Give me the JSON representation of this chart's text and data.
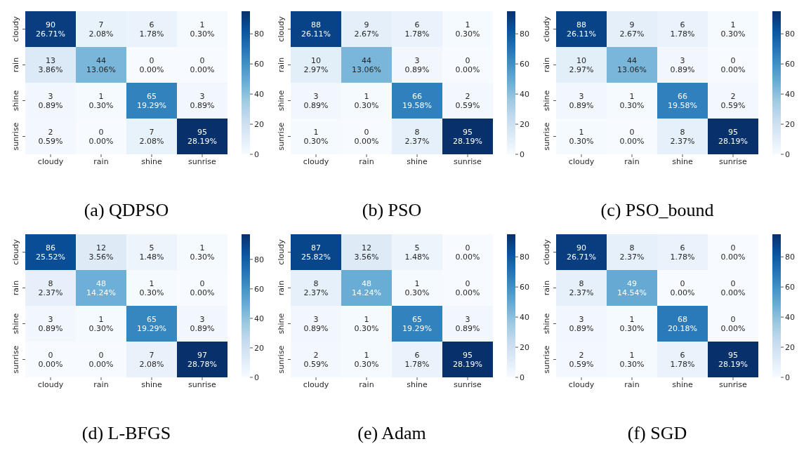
{
  "chart_data": [
    {
      "type": "heatmap",
      "title": "(a) QDPSO",
      "categories": [
        "cloudy",
        "rain",
        "shine",
        "sunrise"
      ],
      "y_categories": [
        "cloudy",
        "rain",
        "shine",
        "sunrise"
      ],
      "cells": [
        [
          90,
          7,
          6,
          1
        ],
        [
          13,
          44,
          0,
          0
        ],
        [
          3,
          1,
          65,
          3
        ],
        [
          2,
          0,
          7,
          95
        ]
      ],
      "cell_labels": [
        [
          "90\n26.71%",
          "7\n2.08%",
          "6\n1.78%",
          "1\n0.30%"
        ],
        [
          "13\n3.86%",
          "44\n13.06%",
          "0\n0.00%",
          "0\n0.00%"
        ],
        [
          "3\n0.89%",
          "1\n0.30%",
          "65\n19.29%",
          "3\n0.89%"
        ],
        [
          "2\n0.59%",
          "0\n0.00%",
          "7\n2.08%",
          "95\n28.19%"
        ]
      ],
      "clim": [
        0,
        95
      ],
      "cticks": [
        0,
        20,
        40,
        60,
        80
      ]
    },
    {
      "type": "heatmap",
      "title": "(b) PSO",
      "categories": [
        "cloudy",
        "rain",
        "shine",
        "sunrise"
      ],
      "y_categories": [
        "cloudy",
        "rain",
        "shine",
        "sunrise"
      ],
      "cells": [
        [
          88,
          9,
          6,
          1
        ],
        [
          10,
          44,
          3,
          0
        ],
        [
          3,
          1,
          66,
          2
        ],
        [
          1,
          0,
          8,
          95
        ]
      ],
      "cell_labels": [
        [
          "88\n26.11%",
          "9\n2.67%",
          "6\n1.78%",
          "1\n0.30%"
        ],
        [
          "10\n2.97%",
          "44\n13.06%",
          "3\n0.89%",
          "0\n0.00%"
        ],
        [
          "3\n0.89%",
          "1\n0.30%",
          "66\n19.58%",
          "2\n0.59%"
        ],
        [
          "1\n0.30%",
          "0\n0.00%",
          "8\n2.37%",
          "95\n28.19%"
        ]
      ],
      "clim": [
        0,
        95
      ],
      "cticks": [
        0,
        20,
        40,
        60,
        80
      ]
    },
    {
      "type": "heatmap",
      "title": "(c) PSO_bound",
      "categories": [
        "cloudy",
        "rain",
        "shine",
        "sunrise"
      ],
      "y_categories": [
        "cloudy",
        "rain",
        "shine",
        "sunrise"
      ],
      "cells": [
        [
          88,
          9,
          6,
          1
        ],
        [
          10,
          44,
          3,
          0
        ],
        [
          3,
          1,
          66,
          2
        ],
        [
          1,
          0,
          8,
          95
        ]
      ],
      "cell_labels": [
        [
          "88\n26.11%",
          "9\n2.67%",
          "6\n1.78%",
          "1\n0.30%"
        ],
        [
          "10\n2.97%",
          "44\n13.06%",
          "3\n0.89%",
          "0\n0.00%"
        ],
        [
          "3\n0.89%",
          "1\n0.30%",
          "66\n19.58%",
          "2\n0.59%"
        ],
        [
          "1\n0.30%",
          "0\n0.00%",
          "8\n2.37%",
          "95\n28.19%"
        ]
      ],
      "clim": [
        0,
        95
      ],
      "cticks": [
        0,
        20,
        40,
        60,
        80
      ]
    },
    {
      "type": "heatmap",
      "title": "(d) L-BFGS",
      "categories": [
        "cloudy",
        "rain",
        "shine",
        "sunrise"
      ],
      "y_categories": [
        "cloudy",
        "rain",
        "shine",
        "sunrise"
      ],
      "cells": [
        [
          86,
          12,
          5,
          1
        ],
        [
          8,
          48,
          1,
          0
        ],
        [
          3,
          1,
          65,
          3
        ],
        [
          0,
          0,
          7,
          97
        ]
      ],
      "cell_labels": [
        [
          "86\n25.52%",
          "12\n3.56%",
          "5\n1.48%",
          "1\n0.30%"
        ],
        [
          "8\n2.37%",
          "48\n14.24%",
          "1\n0.30%",
          "0\n0.00%"
        ],
        [
          "3\n0.89%",
          "1\n0.30%",
          "65\n19.29%",
          "3\n0.89%"
        ],
        [
          "0\n0.00%",
          "0\n0.00%",
          "7\n2.08%",
          "97\n28.78%"
        ]
      ],
      "clim": [
        0,
        97
      ],
      "cticks": [
        0,
        20,
        40,
        60,
        80
      ]
    },
    {
      "type": "heatmap",
      "title": "(e) Adam",
      "categories": [
        "cloudy",
        "rain",
        "shine",
        "sunrise"
      ],
      "y_categories": [
        "cloudy",
        "rain",
        "shine",
        "sunrise"
      ],
      "cells": [
        [
          87,
          12,
          5,
          0
        ],
        [
          8,
          48,
          1,
          0
        ],
        [
          3,
          1,
          65,
          3
        ],
        [
          2,
          1,
          6,
          95
        ]
      ],
      "cell_labels": [
        [
          "87\n25.82%",
          "12\n3.56%",
          "5\n1.48%",
          "0\n0.00%"
        ],
        [
          "8\n2.37%",
          "48\n14.24%",
          "1\n0.30%",
          "0\n0.00%"
        ],
        [
          "3\n0.89%",
          "1\n0.30%",
          "65\n19.29%",
          "3\n0.89%"
        ],
        [
          "2\n0.59%",
          "1\n0.30%",
          "6\n1.78%",
          "95\n28.19%"
        ]
      ],
      "clim": [
        0,
        95
      ],
      "cticks": [
        0,
        20,
        40,
        60,
        80
      ]
    },
    {
      "type": "heatmap",
      "title": "(f) SGD",
      "categories": [
        "cloudy",
        "rain",
        "shine",
        "sunrise"
      ],
      "y_categories": [
        "cloudy",
        "rain",
        "shine",
        "sunrise"
      ],
      "cells": [
        [
          90,
          8,
          6,
          0
        ],
        [
          8,
          49,
          0,
          0
        ],
        [
          3,
          1,
          68,
          0
        ],
        [
          2,
          1,
          6,
          95
        ]
      ],
      "cell_labels": [
        [
          "90\n26.71%",
          "8\n2.37%",
          "6\n1.78%",
          "0\n0.00%"
        ],
        [
          "8\n2.37%",
          "49\n14.54%",
          "0\n0.00%",
          "0\n0.00%"
        ],
        [
          "3\n0.89%",
          "1\n0.30%",
          "68\n20.18%",
          "0\n0.00%"
        ],
        [
          "2\n0.59%",
          "1\n0.30%",
          "6\n1.78%",
          "95\n28.19%"
        ]
      ],
      "clim": [
        0,
        95
      ],
      "cticks": [
        0,
        20,
        40,
        60,
        80
      ]
    }
  ]
}
